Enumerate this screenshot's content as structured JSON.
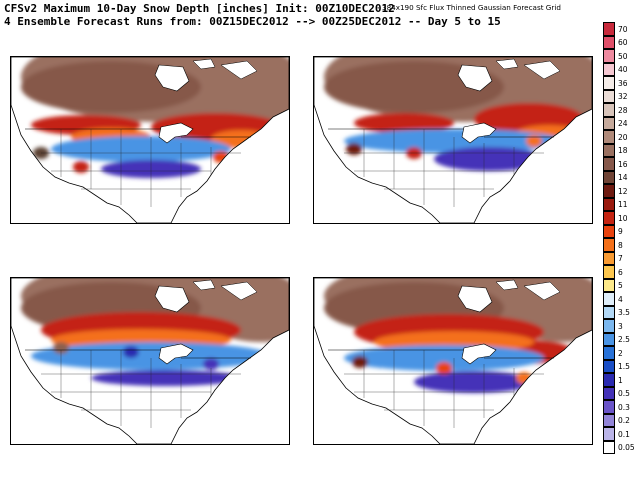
{
  "header": {
    "line1": "CFSv2 Maximum 10-Day Snow Depth [inches] Init: 00Z10DEC2012",
    "line2": "4 Ensemble Forecast Runs from: 00Z15DEC2012 --> 00Z25DEC2012 -- Day 5 to 15",
    "grid_note": "384x190 Sfc Flux Thinned Gaussian Forecast Grid"
  },
  "panels": [
    {
      "id": "run-1"
    },
    {
      "id": "run-2"
    },
    {
      "id": "run-3"
    },
    {
      "id": "run-4"
    }
  ],
  "colorbar": {
    "labels": [
      "70",
      "60",
      "50",
      "40",
      "36",
      "32",
      "28",
      "24",
      "20",
      "18",
      "16",
      "14",
      "12",
      "11",
      "10",
      "9",
      "8",
      "7",
      "6",
      "5",
      "4",
      "3.5",
      "3",
      "2.5",
      "2",
      "1.5",
      "1",
      "0.5",
      "0.3",
      "0.2",
      "0.1",
      "0.05"
    ],
    "colors": [
      "#c82a3c",
      "#e0506a",
      "#ee8aa0",
      "#f6c8d2",
      "#f4ece8",
      "#eadcd6",
      "#d8c4ba",
      "#c6aa9c",
      "#b08a7a",
      "#9a7060",
      "#86584a",
      "#704436",
      "#6e1a10",
      "#9a1a0e",
      "#c42412",
      "#e8420e",
      "#f4701a",
      "#f89a32",
      "#fcc64e",
      "#fde98a",
      "#dfeefa",
      "#b2d8f6",
      "#7cb8ef",
      "#4a94e4",
      "#2872d8",
      "#1a4ec6",
      "#2a2ab0",
      "#4432b8",
      "#6a54c8",
      "#9284d8",
      "#bab4e8",
      "#ffffff"
    ]
  },
  "icons": {
    "map": "north-america-map-icon"
  }
}
